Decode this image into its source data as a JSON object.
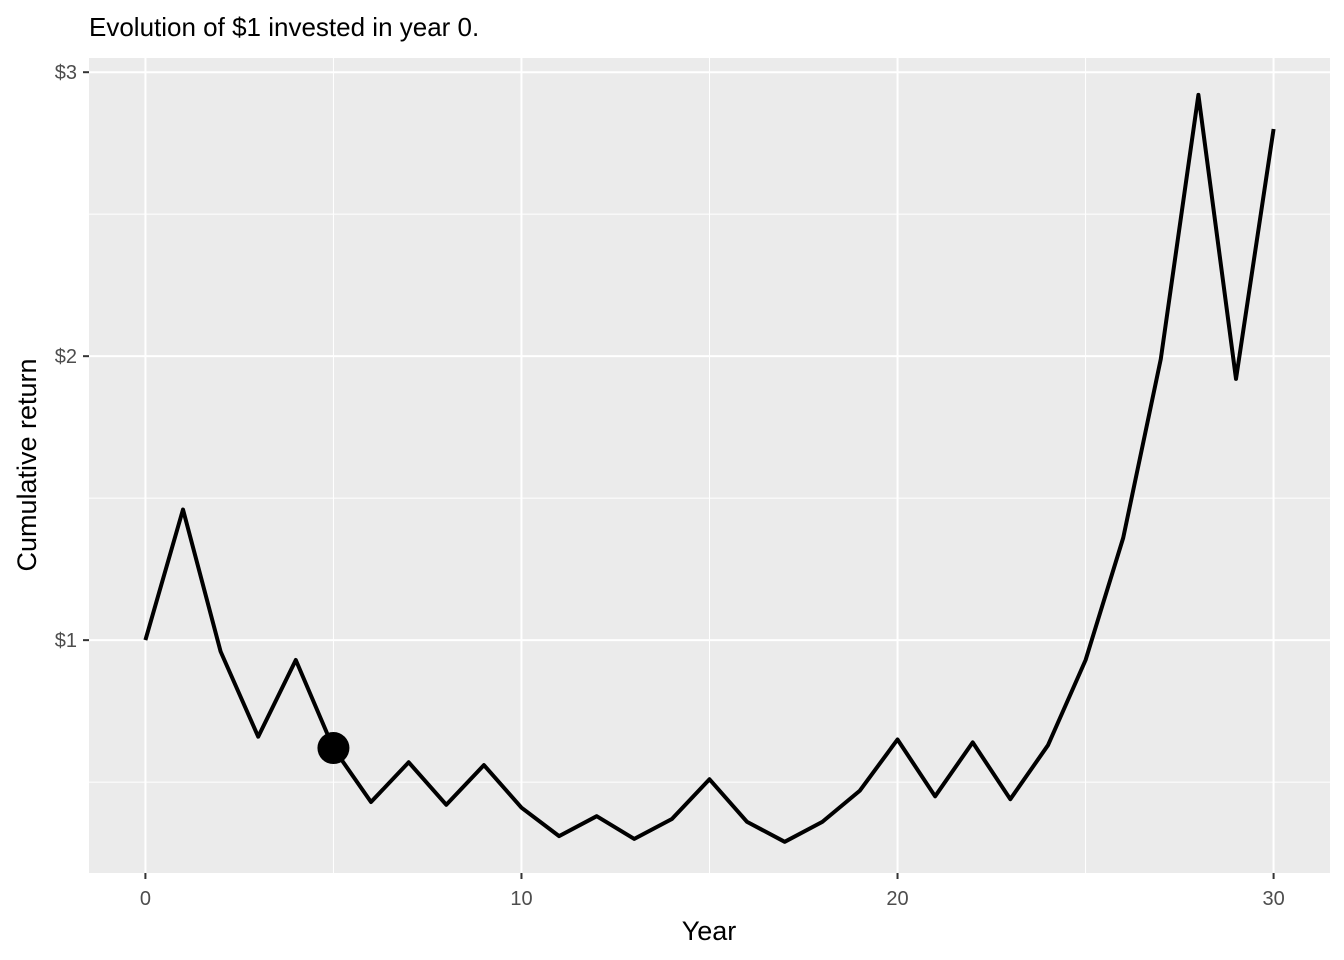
{
  "chart_data": {
    "type": "line",
    "title": "Evolution of $1 invested in year 0.",
    "xlabel": "Year",
    "ylabel": "Cumulative return",
    "xlim": [
      -1.5,
      31.5
    ],
    "ylim": [
      0.18,
      3.05
    ],
    "x_ticks": [
      0,
      10,
      20,
      30
    ],
    "x_tick_labels": [
      "0",
      "10",
      "20",
      "30"
    ],
    "x_minor_ticks": [
      5,
      15,
      25
    ],
    "y_ticks": [
      1,
      2,
      3
    ],
    "y_tick_labels": [
      "$1",
      "$2",
      "$3"
    ],
    "y_minor_ticks": [
      0.5,
      1.5,
      2.5
    ],
    "grid": true,
    "legend": "none",
    "colors": {
      "panel": "#ebebeb",
      "grid": "#ffffff",
      "line": "#000000",
      "tick": "#333333"
    },
    "series": [
      {
        "x": [
          0,
          1,
          2,
          3,
          4,
          5,
          6,
          7,
          8,
          9,
          10,
          11,
          12,
          13,
          14,
          15,
          16,
          17,
          18,
          19,
          20,
          21,
          22,
          23,
          24,
          25,
          26,
          27,
          28,
          29,
          30
        ],
        "y": [
          1.0,
          1.46,
          0.96,
          0.66,
          0.93,
          0.62,
          0.43,
          0.57,
          0.42,
          0.56,
          0.41,
          0.31,
          0.38,
          0.3,
          0.37,
          0.51,
          0.36,
          0.29,
          0.36,
          0.47,
          0.65,
          0.45,
          0.64,
          0.44,
          0.63,
          0.93,
          1.36,
          1.99,
          2.92,
          1.92,
          2.8
        ]
      }
    ],
    "highlight_point": {
      "x": 5,
      "y": 0.62
    }
  }
}
